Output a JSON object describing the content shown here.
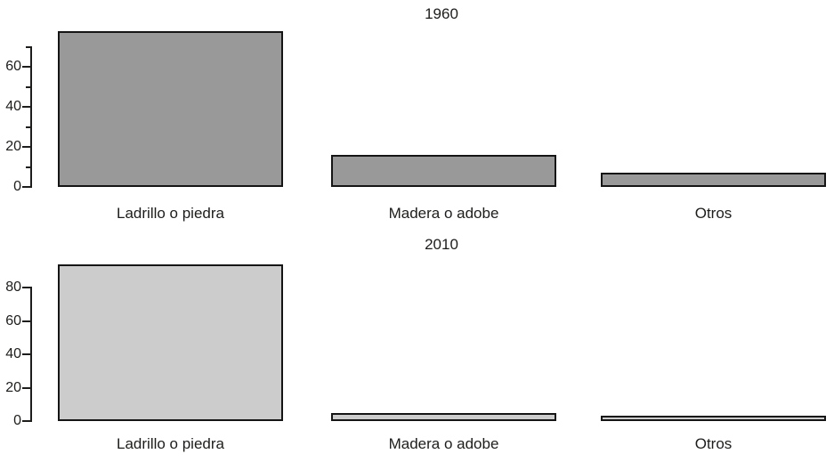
{
  "figure": {
    "background": "#ffffff",
    "text_color": "#1d1d1b"
  },
  "chart_data": [
    {
      "type": "bar",
      "title": "1960",
      "categories": [
        "Ladrillo o piedra",
        "Madera o adobe",
        "Otros"
      ],
      "values": [
        78,
        16,
        7
      ],
      "xlabel": "",
      "ylabel": "",
      "ylim": [
        0,
        70
      ],
      "yticks_major": [
        0,
        20,
        40,
        60
      ],
      "yticks_minor": [
        10,
        30,
        50,
        70
      ],
      "grid": false,
      "legend": false,
      "bar_fill": "#999999",
      "bar_border": "#151515"
    },
    {
      "type": "bar",
      "title": "2010",
      "categories": [
        "Ladrillo o piedra",
        "Madera o adobe",
        "Otros"
      ],
      "values": [
        94,
        5,
        3
      ],
      "xlabel": "",
      "ylabel": "",
      "ylim": [
        0,
        80
      ],
      "yticks_major": [
        0,
        20,
        40,
        60,
        80
      ],
      "yticks_minor": [],
      "grid": false,
      "legend": false,
      "bar_fill": "#cccccc",
      "bar_border": "#151515"
    }
  ]
}
